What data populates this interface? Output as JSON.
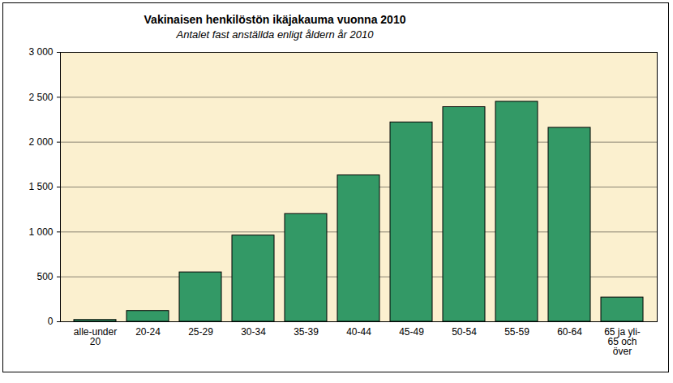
{
  "chart_data": {
    "type": "bar",
    "title": "Vakinaisen henkilöstön ikäjakauma vuonna 2010",
    "subtitle": "Antalet fast anställda enligt åldern år 2010",
    "categories": [
      "alle-under\n20",
      "20-24",
      "25-29",
      "30-34",
      "35-39",
      "40-44",
      "45-49",
      "50-54",
      "55-59",
      "60-64",
      "65 ja yli-\n65 och\növer"
    ],
    "values": [
      20,
      120,
      550,
      960,
      1200,
      1630,
      2220,
      2390,
      2450,
      2160,
      270
    ],
    "color": "#339966",
    "ylim": [
      0,
      3000
    ],
    "yticks": [
      0,
      500,
      {
        "value": 1000,
        "label": "1 000"
      },
      {
        "value": 1500,
        "label": "1 500"
      },
      {
        "value": 2000,
        "label": "2 000"
      },
      {
        "value": 2500,
        "label": "2 500"
      },
      {
        "value": 3000,
        "label": "3 000"
      }
    ],
    "grid": true
  }
}
